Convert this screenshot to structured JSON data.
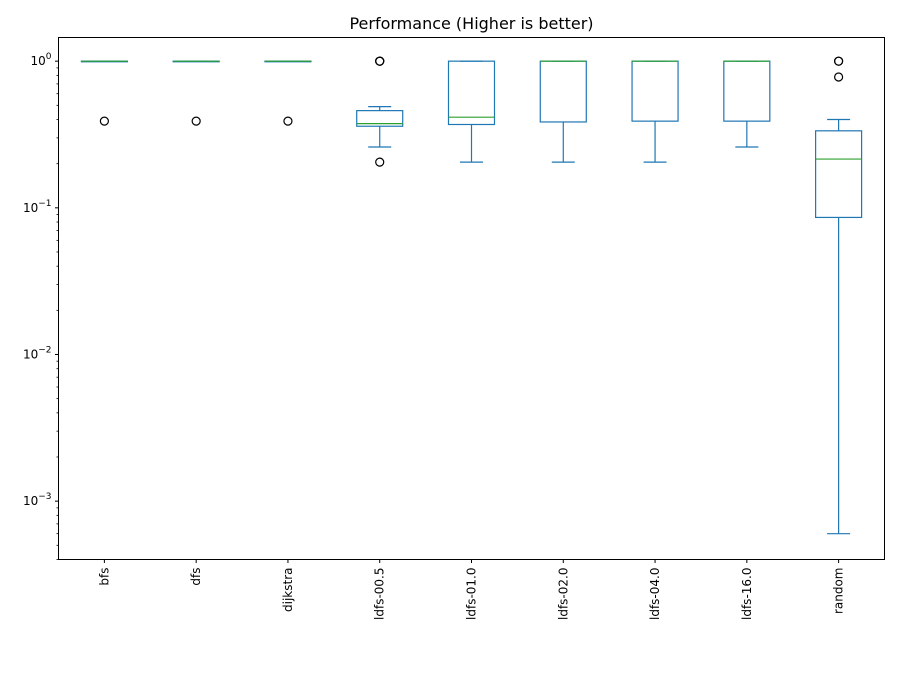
{
  "chart_data": {
    "type": "boxplot",
    "title": "Performance (Higher is better)",
    "xlabel": "",
    "ylabel": "",
    "y_scale": "log",
    "ylim": [
      0.0004,
      1.45
    ],
    "y_ticks": [
      {
        "value": 1,
        "base": "10",
        "exp": "0"
      },
      {
        "value": 0.1,
        "base": "10",
        "exp": "−1"
      },
      {
        "value": 0.01,
        "base": "10",
        "exp": "−2"
      },
      {
        "value": 0.001,
        "base": "10",
        "exp": "−3"
      }
    ],
    "categories": [
      "bfs",
      "dfs",
      "dijkstra",
      "ldfs-00.5",
      "ldfs-01.0",
      "ldfs-02.0",
      "ldfs-04.0",
      "ldfs-16.0",
      "random"
    ],
    "boxes": [
      {
        "label": "bfs",
        "whislo": 1.0,
        "q1": 1.0,
        "med": 1.0,
        "q3": 1.0,
        "whishi": 1.0,
        "fliers": [
          0.39
        ]
      },
      {
        "label": "dfs",
        "whislo": 1.0,
        "q1": 1.0,
        "med": 1.0,
        "q3": 1.0,
        "whishi": 1.0,
        "fliers": [
          0.39
        ]
      },
      {
        "label": "dijkstra",
        "whislo": 1.0,
        "q1": 1.0,
        "med": 1.0,
        "q3": 1.0,
        "whishi": 1.0,
        "fliers": [
          0.39
        ]
      },
      {
        "label": "ldfs-00.5",
        "whislo": 0.26,
        "q1": 0.36,
        "med": 0.375,
        "q3": 0.46,
        "whishi": 0.49,
        "fliers": [
          0.205,
          1.0,
          1.0,
          1.0
        ]
      },
      {
        "label": "ldfs-01.0",
        "whislo": 0.205,
        "q1": 0.37,
        "med": 0.415,
        "q3": 1.0,
        "whishi": 1.0,
        "fliers": []
      },
      {
        "label": "ldfs-02.0",
        "whislo": 0.205,
        "q1": 0.385,
        "med": 1.0,
        "q3": 1.0,
        "whishi": 1.0,
        "fliers": []
      },
      {
        "label": "ldfs-04.0",
        "whislo": 0.205,
        "q1": 0.39,
        "med": 1.0,
        "q3": 1.0,
        "whishi": 1.0,
        "fliers": []
      },
      {
        "label": "ldfs-16.0",
        "whislo": 0.26,
        "q1": 0.39,
        "med": 1.0,
        "q3": 1.0,
        "whishi": 1.0,
        "fliers": []
      },
      {
        "label": "random",
        "whislo": 0.0006,
        "q1": 0.086,
        "med": 0.215,
        "q3": 0.335,
        "whishi": 0.4,
        "fliers": [
          1.0,
          1.0,
          0.78
        ]
      }
    ],
    "grid": false,
    "colors": {
      "box": "#1f77b4",
      "median": "#2ca02c",
      "flier": "#000000",
      "axis": "#000000"
    }
  }
}
